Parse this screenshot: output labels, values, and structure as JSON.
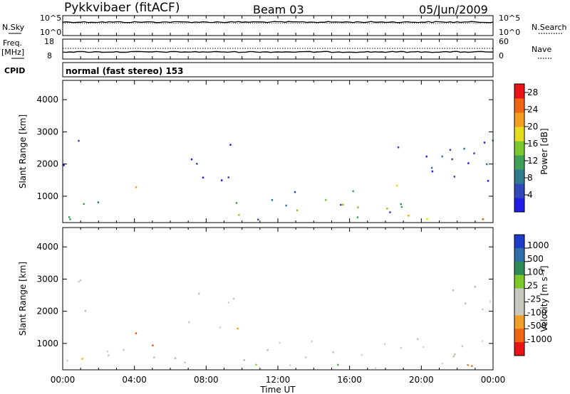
{
  "header": {
    "station": "Pykkvibaer (fitACF)",
    "beam": "Beam 03",
    "date": "05/Jun/2009"
  },
  "status_panels": {
    "nsky_label": "N.Sky",
    "nsky_ticks": [
      "10^5",
      "10^0"
    ],
    "nsearch_label": "N.Search",
    "nsearch_ticks": [
      "10^5",
      "10^0"
    ],
    "freq_label": "Freq.",
    "freq_unit": "[MHz]",
    "freq_ticks": [
      "18",
      "8"
    ],
    "nave_label": "Nave",
    "nave_ticks": [
      "60",
      "0"
    ],
    "cpid_label": "CPID",
    "cpid_text": "normal (fast stereo) 153"
  },
  "chart_data": [
    {
      "type": "heatmap",
      "name": "Power",
      "ylabel": "Slant Range [km]",
      "xlabel": "",
      "x_ticks": [
        "00:00",
        "04:00",
        "08:00",
        "12:00",
        "16:00",
        "20:00",
        "00:00"
      ],
      "y_ticks": [
        1000,
        2000,
        3000,
        4000
      ],
      "ylim": [
        180,
        4600
      ],
      "xlim_hours": [
        0,
        24
      ],
      "colorbar": {
        "label": "Power [dB]",
        "ticks": [
          4,
          8,
          12,
          16,
          20,
          24,
          28
        ],
        "range": [
          0,
          30
        ],
        "colors": [
          "#1e1ee6",
          "#3048b8",
          "#2f7a8e",
          "#3fa05a",
          "#7cc830",
          "#e6dc1e",
          "#f0a01e",
          "#f06414",
          "#e61414"
        ]
      },
      "scatter_regions": [
        {
          "t": [
            0,
            4.0
          ],
          "r": [
            180,
            900
          ],
          "level": 0.55
        },
        {
          "t": [
            0,
            1.2
          ],
          "r": [
            1800,
            3200
          ],
          "level": 0.2
        },
        {
          "t": [
            3.0,
            4.5
          ],
          "r": [
            900,
            1400
          ],
          "level": 0.65
        },
        {
          "t": [
            6.5,
            9.5
          ],
          "r": [
            1500,
            2900
          ],
          "level": 0.15
        },
        {
          "t": [
            9.5,
            14.0
          ],
          "r": [
            200,
            1300
          ],
          "level": 0.25
        },
        {
          "t": [
            14.0,
            19.0
          ],
          "r": [
            200,
            1400
          ],
          "level": 0.35
        },
        {
          "t": [
            18.0,
            24.0
          ],
          "r": [
            180,
            800
          ],
          "level": 0.6
        },
        {
          "t": [
            18.5,
            24.0
          ],
          "r": [
            1300,
            2600
          ],
          "level": 0.2
        },
        {
          "t": [
            21.5,
            24.0
          ],
          "r": [
            2000,
            3300
          ],
          "level": 0.25
        }
      ]
    },
    {
      "type": "heatmap",
      "name": "Velocity",
      "ylabel": "Slant Range [km]",
      "xlabel": "Time UT",
      "x_ticks": [
        "00:00",
        "04:00",
        "08:00",
        "12:00",
        "16:00",
        "20:00",
        "00:00"
      ],
      "y_ticks": [
        1000,
        2000,
        3000,
        4000
      ],
      "ylim": [
        180,
        4600
      ],
      "xlim_hours": [
        0,
        24
      ],
      "colorbar": {
        "label": "Velocity [m s⁻¹]",
        "ticks": [
          1000,
          500,
          100,
          25,
          -25,
          -100,
          -500,
          -1000
        ],
        "colors": [
          "#1e3cc8",
          "#2f6ea8",
          "#2e8c5a",
          "#7cc828",
          "#c8c8c0",
          "#c8c8c0",
          "#f0a028",
          "#f06414",
          "#e61414"
        ]
      },
      "scatter_regions": [
        {
          "t": [
            0,
            8.0
          ],
          "r": [
            300,
            900
          ],
          "color": "gray"
        },
        {
          "t": [
            0,
            1.5
          ],
          "r": [
            1900,
            3200
          ],
          "color": "gray"
        },
        {
          "t": [
            3.0,
            5.5
          ],
          "r": [
            900,
            1400
          ],
          "color": "orange-red"
        },
        {
          "t": [
            0.5,
            3.0
          ],
          "r": [
            250,
            600
          ],
          "color": "yellow-orange"
        },
        {
          "t": [
            6.5,
            9.5
          ],
          "r": [
            1500,
            2700
          ],
          "color": "gray"
        },
        {
          "t": [
            9.0,
            10.0
          ],
          "r": [
            1400,
            1800
          ],
          "color": "orange"
        },
        {
          "t": [
            10.0,
            18.0
          ],
          "r": [
            250,
            1100
          ],
          "color": "gray"
        },
        {
          "t": [
            10.0,
            16.0
          ],
          "r": [
            200,
            450
          ],
          "color": "green"
        },
        {
          "t": [
            18.0,
            24.0
          ],
          "r": [
            250,
            1200
          ],
          "color": "gray"
        },
        {
          "t": [
            21.5,
            24.0
          ],
          "r": [
            2000,
            3300
          ],
          "color": "gray"
        },
        {
          "t": [
            20.0,
            23.0
          ],
          "r": [
            300,
            800
          ],
          "color": "orange"
        }
      ]
    }
  ]
}
